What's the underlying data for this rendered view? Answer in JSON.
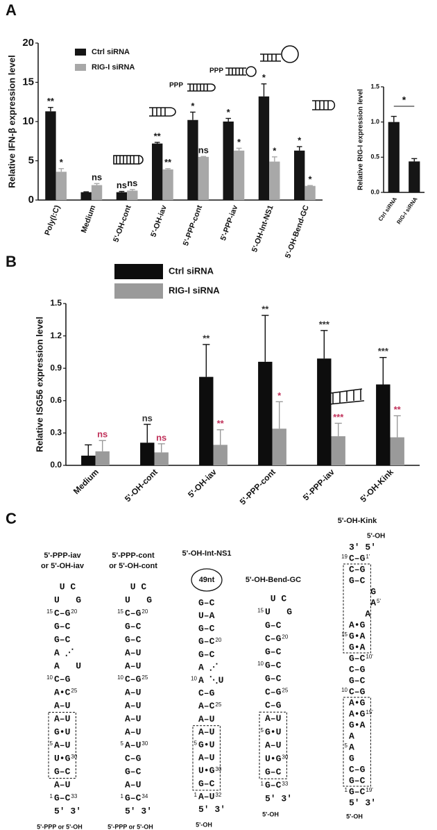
{
  "panel_labels": [
    "A",
    "B",
    "C"
  ],
  "chart_data": [
    {
      "type": "bar",
      "ylabel": "Relative IFN-β expression level",
      "categories": [
        "Poly(I:C)",
        "Medium",
        "5'-OH-cont",
        "5'-OH-iav",
        "5'-PPP-cont",
        "5'-PPP-iav",
        "5'-OH-Int-NS1",
        "5'-OH-Bend-GC"
      ],
      "series": [
        {
          "name": "Ctrl siRNA",
          "color": "#151515",
          "values": [
            11.3,
            1.0,
            1.0,
            7.2,
            10.2,
            10.0,
            13.2,
            6.3
          ],
          "errors": [
            0.5,
            0.05,
            0.1,
            0.15,
            1.0,
            0.4,
            1.6,
            0.5
          ],
          "significance": [
            "**",
            null,
            "ns",
            "**",
            "*",
            "*",
            "*",
            "*"
          ],
          "significance_color": "#151515"
        },
        {
          "name": "RIG-I siRNA",
          "color": "#a8a8a8",
          "values": [
            3.6,
            1.9,
            1.2,
            3.9,
            5.5,
            6.3,
            4.9,
            1.8
          ],
          "errors": [
            0.4,
            0.2,
            0.15,
            0.1,
            0.05,
            0.3,
            0.6,
            0.05
          ],
          "significance": [
            "*",
            "ns",
            "ns",
            "**",
            "ns",
            "*",
            "*",
            "*"
          ],
          "significance_color": "#151515"
        }
      ],
      "ylim": [
        0,
        20
      ],
      "yticks": [
        0,
        5,
        10,
        15,
        20
      ],
      "annotations": [
        "PPP",
        "PPP"
      ]
    },
    {
      "type": "bar",
      "ylabel": "Relative RIG-I expression level",
      "categories": [
        "Ctrl siRNA",
        "RIG-I siRNA"
      ],
      "values": [
        1.0,
        0.44
      ],
      "errors": [
        0.08,
        0.04
      ],
      "color": "#151515",
      "significance": "*",
      "ylim": [
        0,
        1.5
      ],
      "yticks": [
        {
          "value": 0,
          "label": "0.0"
        },
        0.5,
        {
          "value": 1,
          "label": "1.0"
        },
        1.5
      ]
    },
    {
      "type": "bar",
      "ylabel": "Relative ISG56 expression level",
      "categories": [
        "Medium",
        "5'-OH-cont",
        "5'-OH-iav",
        "5'-PPP-cont",
        "5'-PPP-iav",
        "5'-OH-Kink"
      ],
      "series": [
        {
          "name": "Ctrl siRNA",
          "color": "#0d0d0d",
          "values": [
            0.09,
            0.21,
            0.82,
            0.96,
            0.99,
            0.75
          ],
          "errors": [
            0.1,
            0.17,
            0.3,
            0.43,
            0.26,
            0.25
          ],
          "significance": [
            null,
            "ns",
            "**",
            "**",
            "***",
            "***"
          ],
          "significance_color": "#333333"
        },
        {
          "name": "RIG-I siRNA",
          "color": "#9a9a9a",
          "values": [
            0.13,
            0.12,
            0.19,
            0.34,
            0.27,
            0.26
          ],
          "errors": [
            0.1,
            0.08,
            0.14,
            0.25,
            0.12,
            0.2
          ],
          "significance": [
            "ns",
            "ns",
            "**",
            "*",
            "***",
            "**"
          ],
          "significance_color": "#c0315a"
        }
      ],
      "ylim": [
        0,
        1.5
      ],
      "yticks": [
        {
          "value": 0,
          "label": "0.0"
        },
        0.3,
        0.6,
        0.9,
        1.2,
        1.5
      ]
    }
  ],
  "structures": [
    {
      "title": [
        "5'-PPP-iav",
        "or 5'-OH-iav"
      ],
      "rows": [
        {
          "seq": " U C"
        },
        {
          "seq": "U   G"
        },
        {
          "l": 15,
          "seq": "C–G",
          "r": 20
        },
        {
          "seq": "G–C"
        },
        {
          "seq": "G–C"
        },
        {
          "seq": "A ⋰"
        },
        {
          "seq": "A   U"
        },
        {
          "l": 10,
          "seq": "C–G"
        },
        {
          "seq": "A•C",
          "r": 25
        },
        {
          "seq": "A–U"
        },
        {
          "seq": "A–U"
        },
        {
          "seq": "G•U"
        },
        {
          "l": 5,
          "seq": "A–U"
        },
        {
          "seq": "U•G",
          "r": 30
        },
        {
          "seq": "G–C"
        },
        {
          "seq": "A–U"
        },
        {
          "l": 1,
          "seq": "G–C",
          "r": 33
        },
        {
          "seq": "5' 3'"
        }
      ],
      "end_label": "5'-PPP or 5'-OH"
    },
    {
      "title": [
        "5'-PPP-cont",
        "or 5'-OH-cont"
      ],
      "rows": [
        {
          "seq": " U C"
        },
        {
          "seq": "U   G"
        },
        {
          "l": 15,
          "seq": "C–G",
          "r": 20
        },
        {
          "seq": "G–C"
        },
        {
          "seq": "G–C"
        },
        {
          "seq": "A–U"
        },
        {
          "seq": "A–U"
        },
        {
          "l": 10,
          "seq": "C–G",
          "r": 25
        },
        {
          "seq": "A–U"
        },
        {
          "seq": "A–U"
        },
        {
          "seq": "A–U"
        },
        {
          "seq": "A–U"
        },
        {
          "l": 5,
          "seq": "A–U",
          "r": 30
        },
        {
          "seq": "C–G"
        },
        {
          "seq": "G–C"
        },
        {
          "seq": "A–U"
        },
        {
          "l": 1,
          "seq": "G–C",
          "r": 34
        },
        {
          "seq": "5' 3'"
        }
      ],
      "end_label": "5'-PPP or 5'-OH"
    },
    {
      "title": [
        "5'-OH-Int-NS1"
      ],
      "loop": "49nt",
      "rows": [
        {
          "seq": "G–C"
        },
        {
          "seq": "U–A"
        },
        {
          "seq": "G–C"
        },
        {
          "seq": "G–C",
          "r": 20
        },
        {
          "seq": "G–C"
        },
        {
          "seq": "A ⋰"
        },
        {
          "l": 10,
          "seq": "A ⋱U"
        },
        {
          "seq": "C–G"
        },
        {
          "seq": "A–C",
          "r": 25
        },
        {
          "seq": "A–U"
        },
        {
          "seq": "A–U"
        },
        {
          "l": 5,
          "seq": "G•U"
        },
        {
          "seq": "A–U"
        },
        {
          "seq": "U•G",
          "r": 30
        },
        {
          "seq": "G–C"
        },
        {
          "l": 1,
          "seq": "A–U",
          "r": 32
        },
        {
          "seq": "5' 3'"
        }
      ],
      "end_label": "5'-OH"
    },
    {
      "title": [
        "5'-OH-Bend-GC"
      ],
      "rows": [
        {
          "seq": " U C"
        },
        {
          "l": 15,
          "seq": "U   G"
        },
        {
          "seq": "G–C"
        },
        {
          "seq": "C–G",
          "r": 20
        },
        {
          "seq": "G–C"
        },
        {
          "l": 10,
          "seq": "G–C"
        },
        {
          "seq": "G–C"
        },
        {
          "seq": "C–G",
          "r": 25
        },
        {
          "seq": "C–G"
        },
        {
          "seq": "A–U"
        },
        {
          "l": 5,
          "seq": "G•U"
        },
        {
          "seq": "A–U"
        },
        {
          "seq": "U•G",
          "r": 30
        },
        {
          "seq": "G–C"
        },
        {
          "l": 1,
          "seq": "G–C",
          "r": 33
        },
        {
          "seq": "5' 3'"
        }
      ],
      "end_label": "5'-OH"
    },
    {
      "title": [
        "5'-OH-Kink"
      ],
      "top_label": "5'-OH",
      "rows": [
        {
          "seq": "3' 5'"
        },
        {
          "l": 19,
          "seq": "C–G",
          "r": "1'"
        },
        {
          "seq": "C–G"
        },
        {
          "seq": "G–C"
        },
        {
          "seq": "    G"
        },
        {
          "seq": "    A",
          "r": "5'"
        },
        {
          "seq": "   A"
        },
        {
          "seq": "A•G"
        },
        {
          "l": 15,
          "seq": "G•A"
        },
        {
          "seq": "G•A"
        },
        {
          "seq": "G–C",
          "r": "10'"
        },
        {
          "seq": "C–G"
        },
        {
          "seq": "G–C"
        },
        {
          "l": 10,
          "seq": "C–G"
        },
        {
          "seq": "A•G"
        },
        {
          "seq": "A•G",
          "r": "15'"
        },
        {
          "seq": "G•A"
        },
        {
          "seq": "A"
        },
        {
          "l": 5,
          "seq": "A"
        },
        {
          "seq": "G"
        },
        {
          "seq": "C–G"
        },
        {
          "seq": "G–C"
        },
        {
          "l": 1,
          "seq": "G–C",
          "r": "19'"
        },
        {
          "seq": "5' 3'"
        }
      ],
      "end_label": "5'-OH"
    }
  ]
}
